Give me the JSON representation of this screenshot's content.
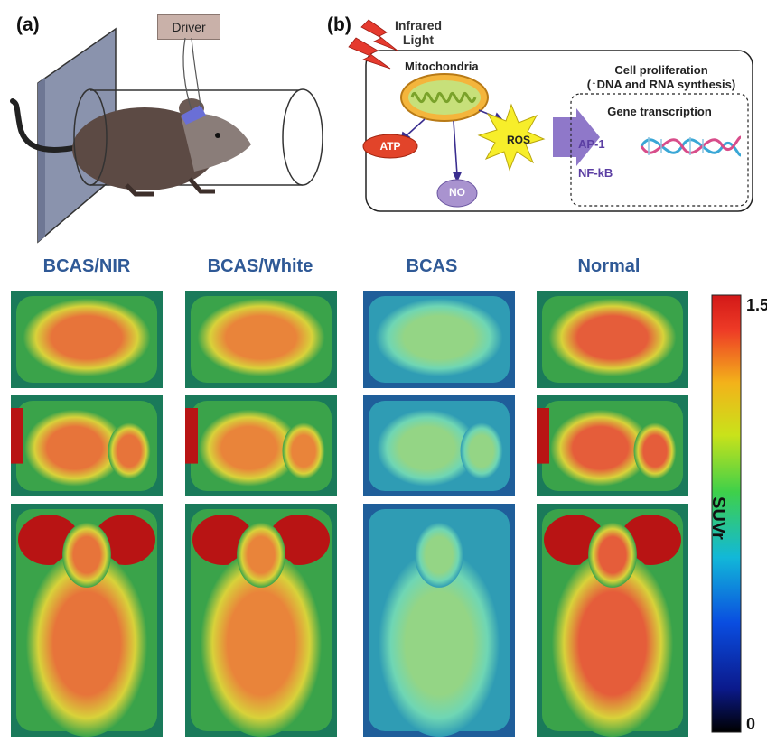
{
  "panel_a": {
    "label": "(a)",
    "driver_label": "Driver"
  },
  "panel_b": {
    "label": "(b)",
    "infrared_label": "Infrared\nLight",
    "mitochondria_label": "Mitochondria",
    "atp_label": "ATP",
    "no_label": "NO",
    "ros_label": "ROS",
    "cell_prolif_line1": "Cell proliferation",
    "cell_prolif_line2": "(↑DNA and RNA synthesis)",
    "gene_transcription": "Gene transcription",
    "ap1": "AP-1",
    "nfkb": "NF-kB"
  },
  "columns": [
    {
      "title": "BCAS/NIR",
      "level": 0.85
    },
    {
      "title": "BCAS/White",
      "level": 0.8
    },
    {
      "title": "BCAS",
      "level": 0.45
    },
    {
      "title": "Normal",
      "level": 0.92
    }
  ],
  "colorbar": {
    "max_label": "1.5",
    "min_label": "0",
    "axis_label": "SUVr",
    "colors": [
      "#000000",
      "#0b1a8c",
      "#0a4de0",
      "#12b8d8",
      "#3fd04a",
      "#c9e21a",
      "#f3b21a",
      "#ee3b26",
      "#d21818"
    ]
  }
}
